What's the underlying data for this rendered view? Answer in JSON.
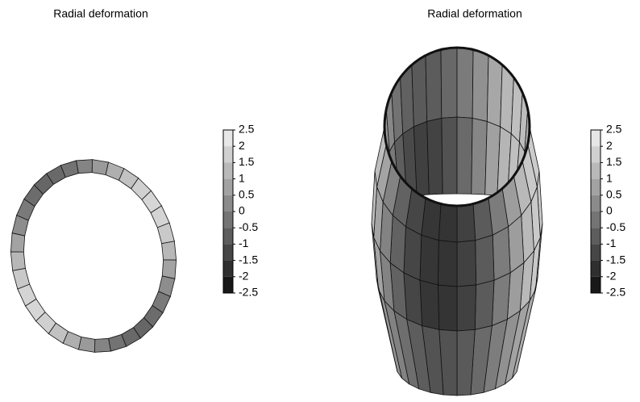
{
  "chart_data": [
    {
      "type": "surface",
      "title": "Radial deformation",
      "colormap": "gray",
      "clim": [
        -2.5,
        2.5
      ],
      "cticks": [
        2.5,
        2,
        1.5,
        1,
        0.5,
        0,
        -0.5,
        -1,
        -1.5,
        -2,
        -2.5
      ]
    },
    {
      "type": "surface",
      "title": "Radial deformation",
      "colormap": "gray",
      "clim": [
        -2.5,
        2.5
      ],
      "cticks": [
        2.5,
        2,
        1.5,
        1,
        0.5,
        0,
        -0.5,
        -1,
        -1.5,
        -2,
        -2.5
      ]
    }
  ]
}
